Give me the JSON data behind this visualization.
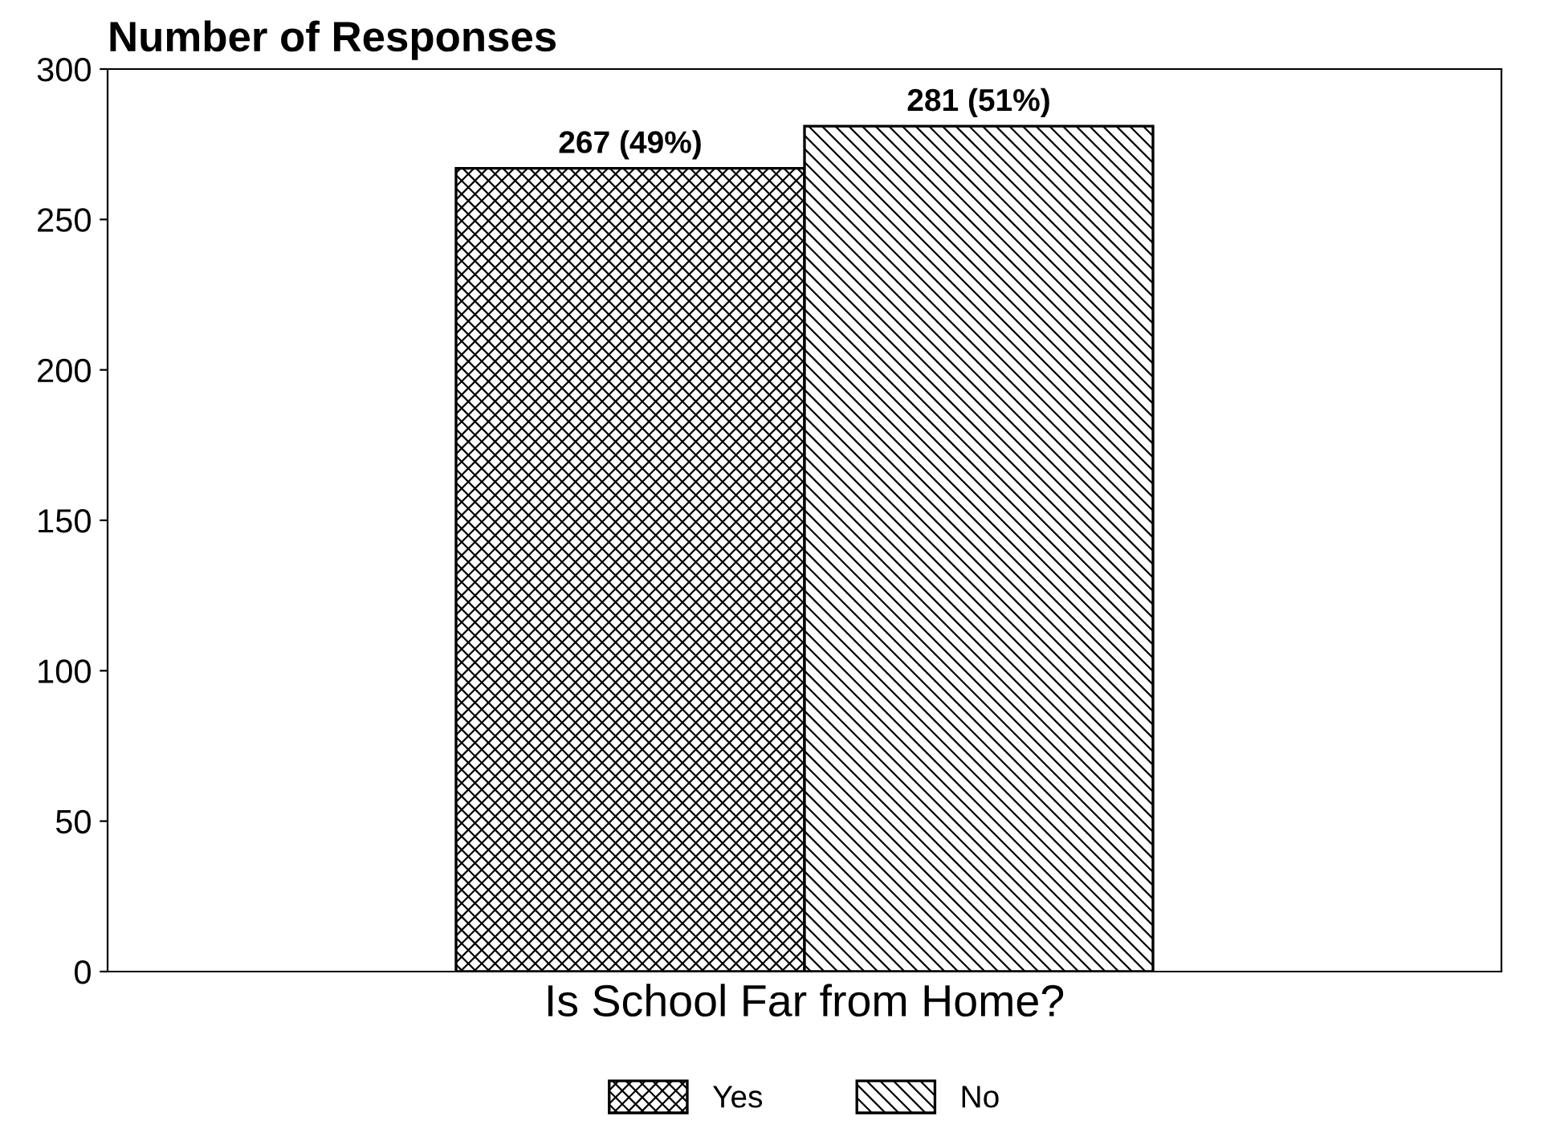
{
  "chart_data": {
    "type": "bar",
    "ylabel": "Number of Responses",
    "xlabel": "Is School Far from Home?",
    "categories": [
      null
    ],
    "series": [
      {
        "name": "Yes",
        "color": "#000000",
        "values": [
          267
        ],
        "value_labels": [
          "267 (49%)"
        ]
      },
      {
        "name": "No",
        "color": "#000000",
        "values": [
          281
        ],
        "value_labels": [
          "281 (51%)"
        ]
      }
    ],
    "ylim": [
      0,
      300
    ],
    "yticks": [
      0,
      50,
      100,
      150,
      200,
      250,
      300
    ],
    "grid": false,
    "legend": "bottom"
  }
}
